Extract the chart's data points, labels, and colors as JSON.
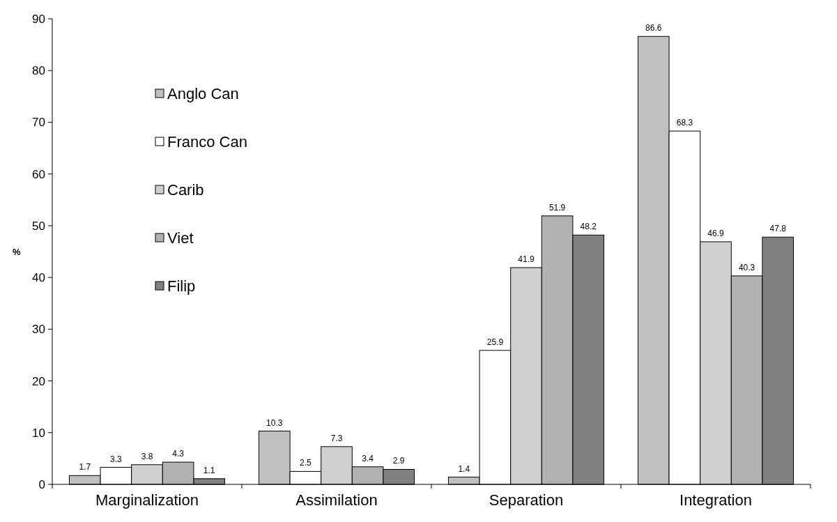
{
  "chart_data": {
    "type": "bar",
    "ylabel": "%",
    "categories": [
      "Marginalization",
      "Assimilation",
      "Separation",
      "Integration"
    ],
    "series": [
      {
        "name": "Anglo Can",
        "color": "#c0c0c0",
        "values": [
          1.7,
          10.3,
          1.4,
          86.6
        ]
      },
      {
        "name": "Franco Can",
        "color": "#ffffff",
        "values": [
          3.3,
          2.5,
          25.9,
          68.3
        ]
      },
      {
        "name": "Carib",
        "color": "#d0d0d0",
        "values": [
          3.8,
          7.3,
          41.9,
          46.9
        ]
      },
      {
        "name": "Viet",
        "color": "#b2b2b2",
        "values": [
          4.3,
          3.4,
          51.9,
          40.3
        ]
      },
      {
        "name": "Filip",
        "color": "#808080",
        "values": [
          1.1,
          2.9,
          48.2,
          47.8
        ]
      }
    ],
    "ylim": [
      0,
      90
    ],
    "yticks": [
      0,
      10,
      20,
      30,
      40,
      50,
      60,
      70,
      80,
      90
    ],
    "data_labels": true,
    "legend": "top left"
  }
}
